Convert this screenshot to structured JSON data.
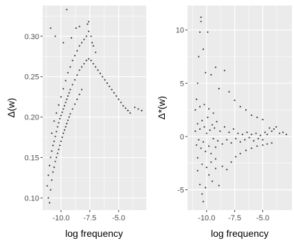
{
  "figure": {
    "colors": {
      "panel_bg": "#EBEBEB",
      "grid": "#FFFFFF",
      "point": "#000000",
      "text": "#4D4D4D"
    }
  },
  "chart_data": [
    {
      "type": "scatter",
      "xlabel": "log frequency",
      "ylabel": "Δ(w)",
      "xlim": [
        -11.6,
        -2.6
      ],
      "ylim": [
        0.085,
        0.338
      ],
      "x_ticks": [
        -10.0,
        -7.5,
        -5.0
      ],
      "x_tick_labels": [
        "-10.0",
        "-7.5",
        "-5.0"
      ],
      "y_ticks": [
        0.1,
        0.15,
        0.2,
        0.25,
        0.3
      ],
      "y_tick_labels": [
        "0.10",
        "0.15",
        "0.20",
        "0.25",
        "0.30"
      ],
      "grid": true,
      "legend": "none",
      "points": [
        [
          -11.2,
          0.115
        ],
        [
          -11.1,
          0.128
        ],
        [
          -11.0,
          0.14
        ],
        [
          -10.9,
          0.15
        ],
        [
          -10.8,
          0.158
        ],
        [
          -10.7,
          0.165
        ],
        [
          -10.6,
          0.17
        ],
        [
          -10.5,
          0.176
        ],
        [
          -10.4,
          0.182
        ],
        [
          -10.3,
          0.188
        ],
        [
          -10.2,
          0.193
        ],
        [
          -10.1,
          0.198
        ],
        [
          -10.0,
          0.202
        ],
        [
          -9.9,
          0.206
        ],
        [
          -9.8,
          0.21
        ],
        [
          -9.7,
          0.214
        ],
        [
          -9.6,
          0.218
        ],
        [
          -9.5,
          0.222
        ],
        [
          -9.4,
          0.226
        ],
        [
          -9.3,
          0.23
        ],
        [
          -9.2,
          0.234
        ],
        [
          -9.0,
          0.24
        ],
        [
          -8.8,
          0.246
        ],
        [
          -8.6,
          0.252
        ],
        [
          -8.4,
          0.258
        ],
        [
          -8.2,
          0.262
        ],
        [
          -8.0,
          0.266
        ],
        [
          -7.8,
          0.27
        ],
        [
          -7.6,
          0.272
        ],
        [
          -7.4,
          0.27
        ],
        [
          -7.2,
          0.266
        ],
        [
          -7.0,
          0.262
        ],
        [
          -6.8,
          0.258
        ],
        [
          -6.6,
          0.254
        ],
        [
          -6.4,
          0.25
        ],
        [
          -6.2,
          0.246
        ],
        [
          -6.0,
          0.242
        ],
        [
          -5.8,
          0.238
        ],
        [
          -5.6,
          0.234
        ],
        [
          -5.4,
          0.23
        ],
        [
          -5.2,
          0.226
        ],
        [
          -5.0,
          0.222
        ],
        [
          -4.8,
          0.218
        ],
        [
          -4.6,
          0.214
        ],
        [
          -4.4,
          0.211
        ],
        [
          -4.2,
          0.208
        ],
        [
          -4.0,
          0.205
        ],
        [
          -3.6,
          0.212
        ],
        [
          -3.3,
          0.21
        ],
        [
          -3.0,
          0.208
        ],
        [
          -11.1,
          0.1
        ],
        [
          -11.0,
          0.094
        ],
        [
          -10.9,
          0.11
        ],
        [
          -10.8,
          0.122
        ],
        [
          -10.7,
          0.132
        ],
        [
          -10.6,
          0.138
        ],
        [
          -10.5,
          0.145
        ],
        [
          -10.4,
          0.15
        ],
        [
          -10.3,
          0.155
        ],
        [
          -10.2,
          0.16
        ],
        [
          -10.1,
          0.165
        ],
        [
          -10.0,
          0.17
        ],
        [
          -9.9,
          0.175
        ],
        [
          -9.8,
          0.18
        ],
        [
          -9.7,
          0.184
        ],
        [
          -9.6,
          0.188
        ],
        [
          -9.5,
          0.192
        ],
        [
          -9.4,
          0.196
        ],
        [
          -9.3,
          0.2
        ],
        [
          -9.2,
          0.204
        ],
        [
          -9.0,
          0.21
        ],
        [
          -8.8,
          0.216
        ],
        [
          -8.6,
          0.222
        ],
        [
          -8.4,
          0.228
        ],
        [
          -8.2,
          0.234
        ],
        [
          -10.8,
          0.18
        ],
        [
          -10.6,
          0.195
        ],
        [
          -10.4,
          0.205
        ],
        [
          -10.2,
          0.215
        ],
        [
          -10.0,
          0.225
        ],
        [
          -9.8,
          0.235
        ],
        [
          -9.6,
          0.245
        ],
        [
          -9.4,
          0.255
        ],
        [
          -9.2,
          0.262
        ],
        [
          -9.0,
          0.27
        ],
        [
          -8.8,
          0.276
        ],
        [
          -8.6,
          0.282
        ],
        [
          -8.4,
          0.288
        ],
        [
          -8.2,
          0.292
        ],
        [
          -8.0,
          0.296
        ],
        [
          -7.8,
          0.3
        ],
        [
          -7.6,
          0.306
        ],
        [
          -7.4,
          0.3
        ],
        [
          -7.2,
          0.288
        ],
        [
          -7.0,
          0.28
        ],
        [
          -9.5,
          0.333
        ],
        [
          -8.7,
          0.31
        ],
        [
          -8.4,
          0.312
        ],
        [
          -7.7,
          0.315
        ],
        [
          -7.6,
          0.318
        ],
        [
          -10.5,
          0.3
        ],
        [
          -10.9,
          0.31
        ],
        [
          -9.8,
          0.292
        ],
        [
          -9.1,
          0.298
        ],
        [
          -7.3,
          0.292
        ]
      ]
    },
    {
      "type": "scatter",
      "xlabel": "log frequency",
      "ylabel": "Δ*(w)",
      "xlim": [
        -11.7,
        -2.4
      ],
      "ylim": [
        -6.9,
        12.3
      ],
      "x_ticks": [
        -10.0,
        -7.5,
        -5.0
      ],
      "x_tick_labels": [
        "-10.0",
        "-7.5",
        "-5.0"
      ],
      "y_ticks": [
        -5,
        0,
        5,
        10
      ],
      "y_tick_labels": [
        "-5",
        "0",
        "5",
        "10"
      ],
      "grid": true,
      "legend": "none",
      "points": [
        [
          -11.0,
          0.5
        ],
        [
          -10.9,
          -0.8
        ],
        [
          -10.8,
          1.2
        ],
        [
          -10.7,
          -0.3
        ],
        [
          -10.6,
          0.7
        ],
        [
          -10.5,
          -1.1
        ],
        [
          -10.4,
          1.5
        ],
        [
          -10.3,
          -0.5
        ],
        [
          -10.2,
          0.9
        ],
        [
          -10.1,
          -1.4
        ],
        [
          -10.0,
          0.3
        ],
        [
          -9.9,
          1.8
        ],
        [
          -9.8,
          -0.9
        ],
        [
          -9.7,
          0.6
        ],
        [
          -9.6,
          -1.6
        ],
        [
          -9.5,
          1.1
        ],
        [
          -9.4,
          -0.2
        ],
        [
          -9.3,
          0.8
        ],
        [
          -9.2,
          -1.0
        ],
        [
          -9.1,
          1.4
        ],
        [
          -9.0,
          -0.4
        ],
        [
          -8.8,
          0.5
        ],
        [
          -8.6,
          -0.7
        ],
        [
          -8.4,
          0.9
        ],
        [
          -8.2,
          -0.3
        ],
        [
          -8.0,
          0.4
        ],
        [
          -7.8,
          -0.6
        ],
        [
          -7.6,
          0.7
        ],
        [
          -7.4,
          -0.2
        ],
        [
          -7.2,
          0.3
        ],
        [
          -7.0,
          -0.5
        ],
        [
          -6.8,
          0.2
        ],
        [
          -6.6,
          -0.3
        ],
        [
          -6.4,
          0.4
        ],
        [
          -6.2,
          -0.1
        ],
        [
          -6.0,
          0.2
        ],
        [
          -5.8,
          -0.4
        ],
        [
          -5.6,
          0.3
        ],
        [
          -5.4,
          -0.2
        ],
        [
          -5.2,
          0.1
        ],
        [
          -5.0,
          -0.3
        ],
        [
          -4.8,
          0.4
        ],
        [
          -4.6,
          0.2
        ],
        [
          -4.4,
          0.8
        ],
        [
          -4.2,
          0.5
        ],
        [
          -4.0,
          0.7
        ],
        [
          -3.8,
          0.9
        ],
        [
          -3.5,
          0.3
        ],
        [
          -3.2,
          0.4
        ],
        [
          -2.9,
          0.2
        ],
        [
          -10.9,
          3.5
        ],
        [
          -10.8,
          5.0
        ],
        [
          -10.7,
          7.5
        ],
        [
          -10.6,
          9.8
        ],
        [
          -10.5,
          11.2
        ],
        [
          -10.5,
          10.8
        ],
        [
          -10.3,
          8.2
        ],
        [
          -10.1,
          6.0
        ],
        [
          -9.9,
          9.8
        ],
        [
          -9.6,
          5.8
        ],
        [
          -9.2,
          6.5
        ],
        [
          -8.9,
          4.5
        ],
        [
          -8.4,
          6.2
        ],
        [
          -8.0,
          4.2
        ],
        [
          -7.5,
          3.4
        ],
        [
          -7.0,
          2.8
        ],
        [
          -6.5,
          2.5
        ],
        [
          -6.0,
          2.0
        ],
        [
          -5.5,
          1.8
        ],
        [
          -5.0,
          1.6
        ],
        [
          -10.8,
          -3.2
        ],
        [
          -10.6,
          -4.5
        ],
        [
          -10.4,
          -5.4
        ],
        [
          -10.3,
          -6.1
        ],
        [
          -10.1,
          -4.8
        ],
        [
          -9.8,
          -3.6
        ],
        [
          -9.5,
          -4.2
        ],
        [
          -9.2,
          -3.0
        ],
        [
          -8.9,
          -4.6
        ],
        [
          -8.6,
          -2.8
        ],
        [
          -8.2,
          -3.1
        ],
        [
          -7.8,
          -2.4
        ],
        [
          -7.4,
          -1.9
        ],
        [
          -7.0,
          -1.6
        ],
        [
          -6.5,
          -1.3
        ],
        [
          -6.0,
          -1.1
        ],
        [
          -5.5,
          -0.9
        ],
        [
          -5.0,
          -0.8
        ],
        [
          -4.6,
          -0.7
        ],
        [
          -4.2,
          -0.6
        ],
        [
          -11.0,
          2.5
        ],
        [
          -10.8,
          -2.0
        ],
        [
          -10.6,
          2.8
        ],
        [
          -10.4,
          -2.6
        ],
        [
          -10.2,
          3.0
        ],
        [
          -10.0,
          -2.9
        ],
        [
          -9.8,
          2.6
        ],
        [
          -9.6,
          -2.4
        ],
        [
          -9.4,
          2.2
        ],
        [
          -9.2,
          -2.1
        ]
      ]
    }
  ]
}
